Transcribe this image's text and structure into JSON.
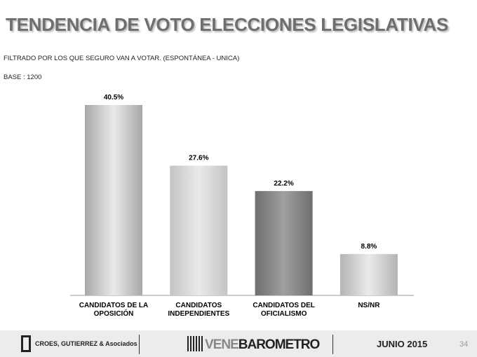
{
  "header": {
    "title": "TENDENCIA DE VOTO ELECCIONES LEGISLATIVAS",
    "filter": "FILTRADO POR LOS QUE SEGURO VAN A VOTAR.   (ESPONTÁNEA - UNICA)",
    "base": "BASE : 1200"
  },
  "chart_data": {
    "type": "bar",
    "categories": [
      "CANDIDATOS DE LA OPOSICIÓN",
      "CANDIDATOS INDEPENDIENTES",
      "CANDIDATOS DEL OFICIALISMO",
      "NS/NR"
    ],
    "values": [
      40.5,
      27.6,
      22.2,
      8.8
    ],
    "labels": [
      "40.5%",
      "27.6%",
      "22.2%",
      "8.8%"
    ],
    "colors": [
      "#a8a8a8",
      "#c4c4c4",
      "#6e6e6e",
      "#b4b4b4"
    ],
    "ylim": [
      0,
      42
    ],
    "grid": false
  },
  "footer": {
    "brand1": "CROES, GUTIERREZ & Asociados",
    "brand2_a": "VENE",
    "brand2_b": "BAROMETRO",
    "date": "JUNIO 2015",
    "page": "34"
  }
}
